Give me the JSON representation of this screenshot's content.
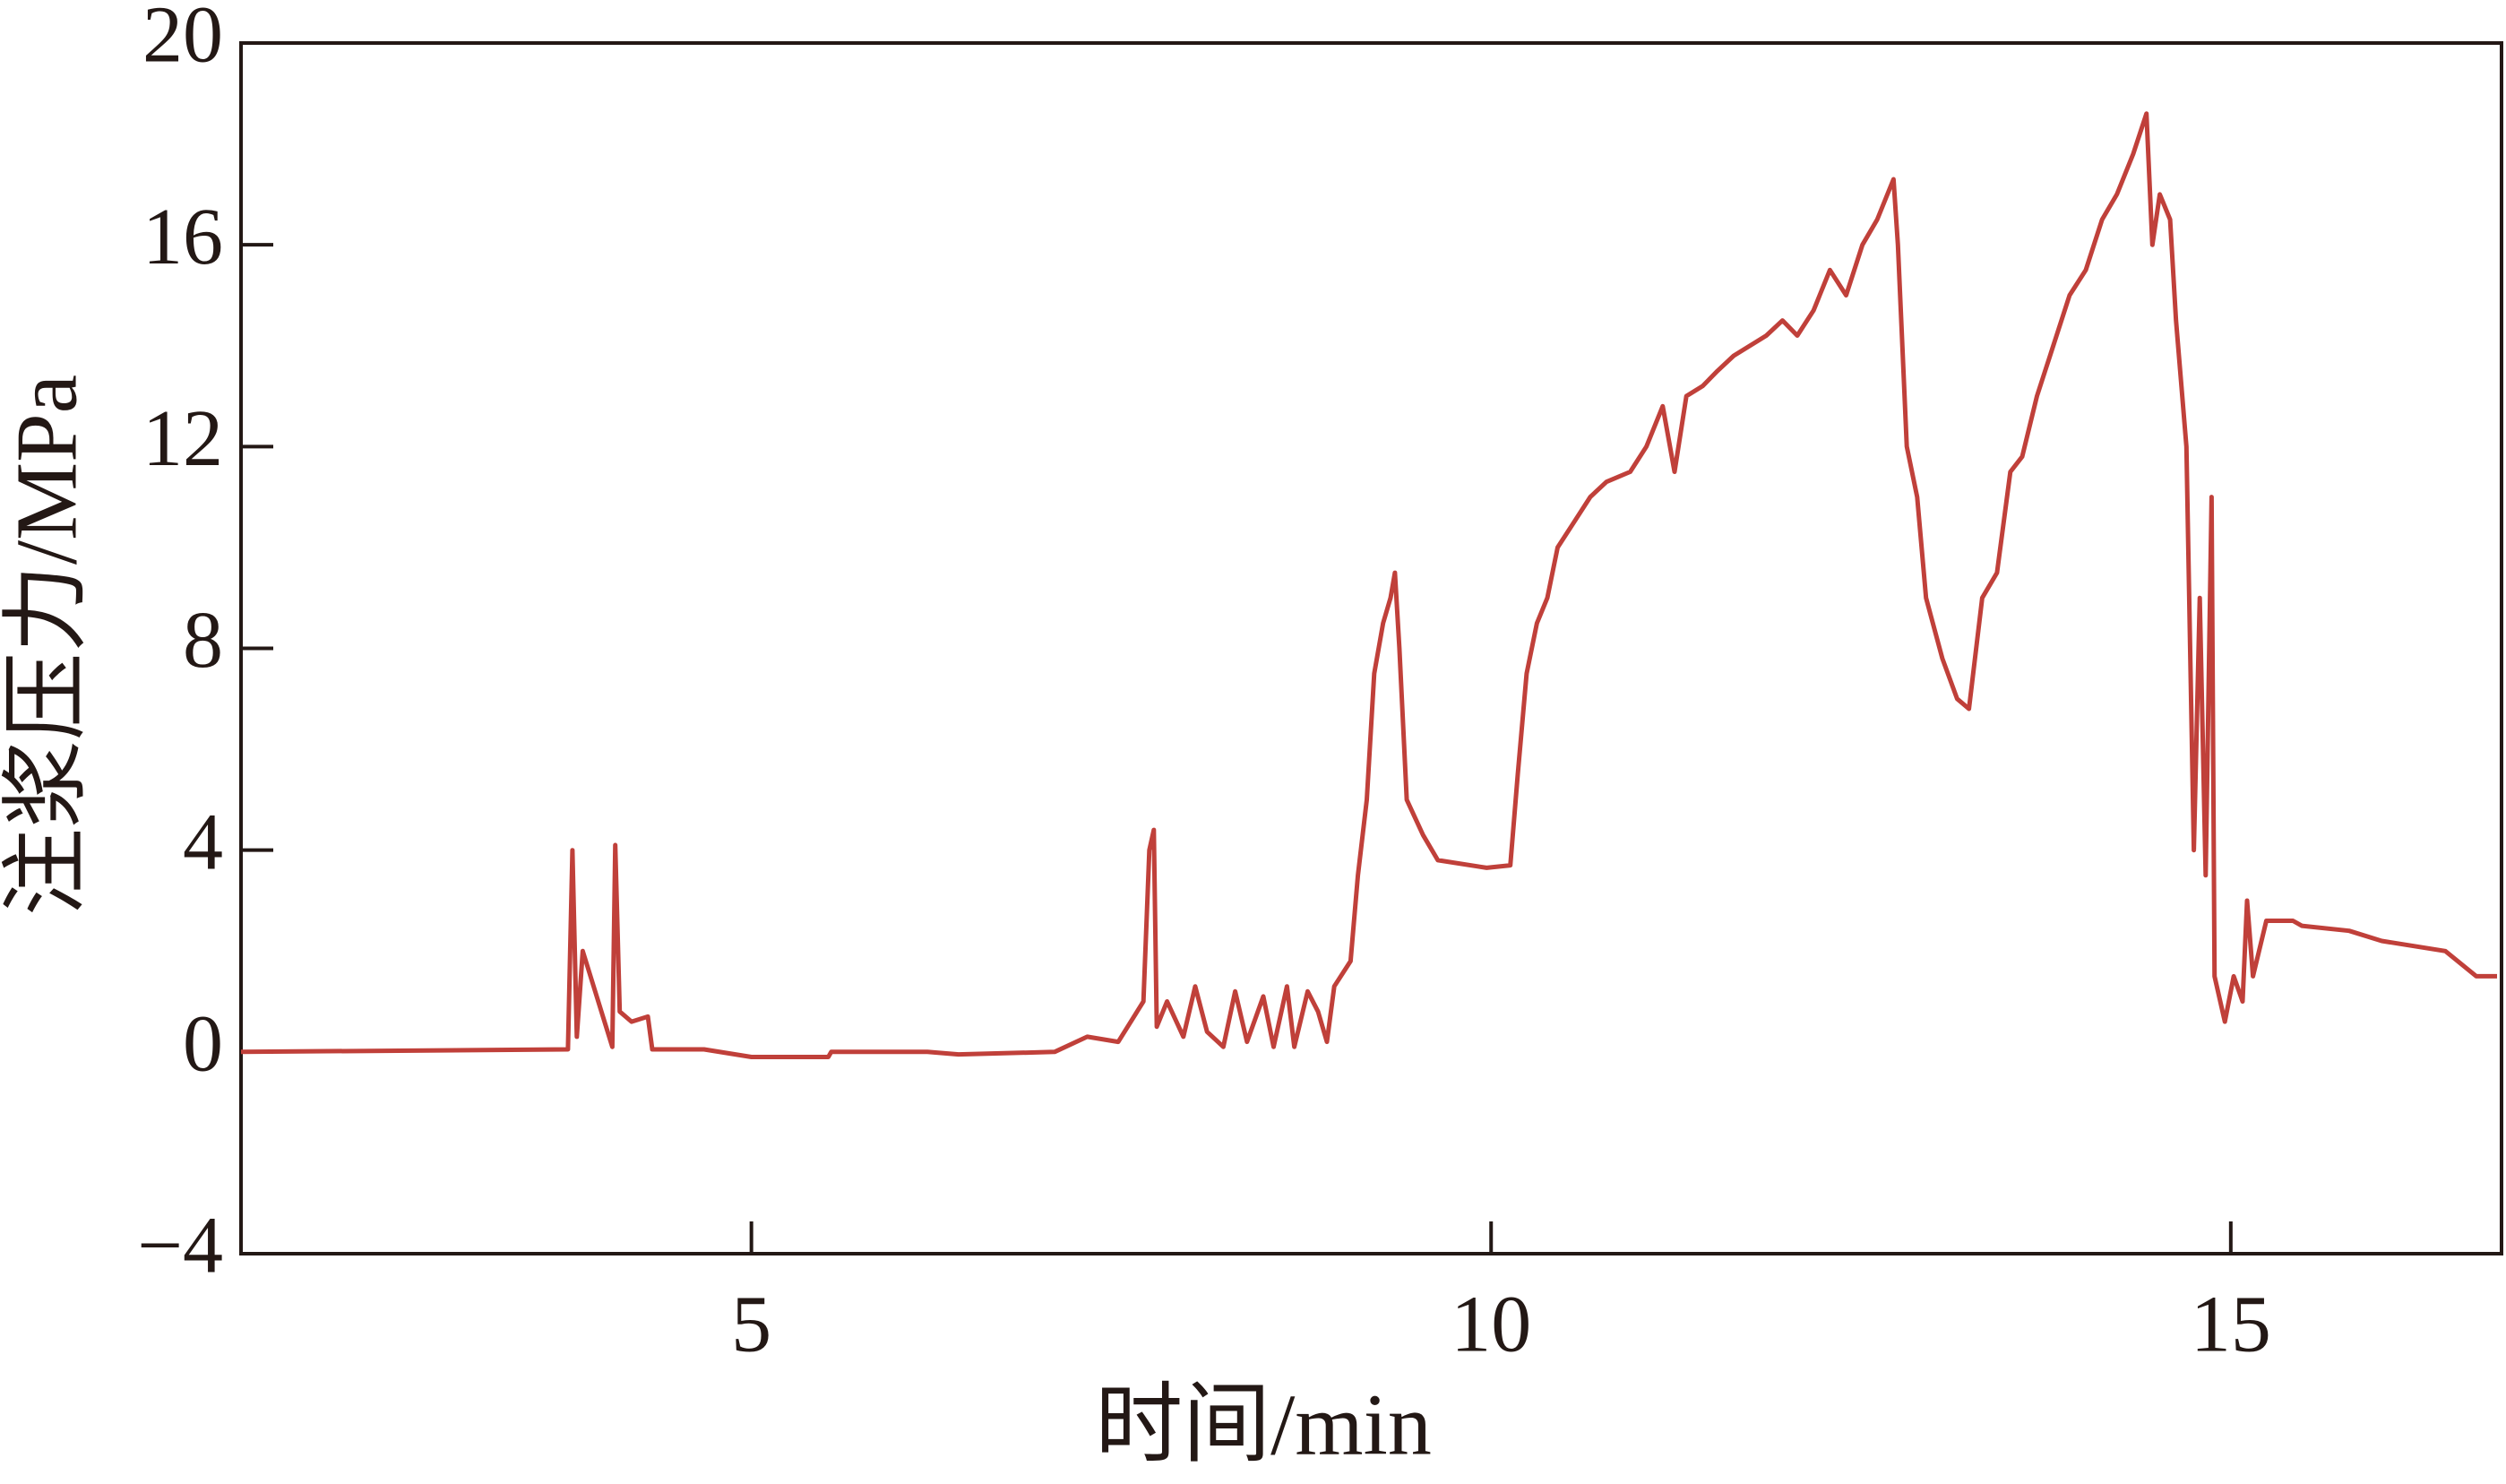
{
  "chart_data": {
    "type": "line",
    "xlabel": "时间/min",
    "ylabel": "注浆压力/MPa",
    "xlim": [
      1.55,
      16.83
    ],
    "ylim": [
      -4,
      20
    ],
    "xticks": [
      5,
      10,
      15
    ],
    "yticks": [
      {
        "value": -4,
        "label": "−4"
      },
      0,
      4,
      8,
      12,
      16,
      20
    ],
    "x": [
      1.55,
      3.76,
      3.79,
      3.82,
      3.86,
      4.06,
      4.08,
      4.11,
      4.19,
      4.3,
      4.33,
      4.68,
      5.0,
      5.52,
      5.54,
      6.19,
      6.4,
      7.05,
      7.27,
      7.48,
      7.65,
      7.69,
      7.72,
      7.74,
      7.81,
      7.92,
      8.0,
      8.08,
      8.19,
      8.27,
      8.35,
      8.46,
      8.53,
      8.62,
      8.67,
      8.76,
      8.83,
      8.89,
      8.94,
      9.05,
      9.1,
      9.16,
      9.21,
      9.27,
      9.32,
      9.35,
      9.38,
      9.43,
      9.54,
      9.64,
      9.97,
      10.13,
      10.18,
      10.24,
      10.31,
      10.38,
      10.45,
      10.56,
      10.67,
      10.78,
      10.94,
      11.05,
      11.16,
      11.24,
      11.32,
      11.43,
      11.53,
      11.64,
      11.75,
      11.86,
      11.97,
      12.07,
      12.18,
      12.29,
      12.4,
      12.51,
      12.61,
      12.72,
      12.75,
      12.81,
      12.88,
      12.94,
      13.05,
      13.15,
      13.23,
      13.32,
      13.42,
      13.51,
      13.59,
      13.69,
      13.8,
      13.91,
      14.02,
      14.13,
      14.23,
      14.34,
      14.43,
      14.47,
      14.52,
      14.59,
      14.63,
      14.7,
      14.75,
      14.79,
      14.83,
      14.87,
      14.89,
      14.96,
      15.02,
      15.08,
      15.11,
      15.15,
      15.24,
      15.42,
      15.48,
      15.8,
      16.02,
      16.45,
      16.66,
      16.8
    ],
    "series": [
      {
        "name": "注浆压力",
        "color": "#c0403a",
        "values": [
          0,
          0.05,
          4.0,
          0.3,
          2.0,
          0.1,
          4.1,
          0.8,
          0.6,
          0.7,
          0.05,
          0.05,
          -0.1,
          -0.1,
          0,
          0,
          -0.05,
          0,
          0.3,
          0.2,
          1.0,
          4.0,
          4.4,
          0.5,
          1.0,
          0.3,
          1.3,
          0.4,
          0.1,
          1.2,
          0.2,
          1.1,
          0.1,
          1.3,
          0.1,
          1.2,
          0.8,
          0.2,
          1.3,
          1.8,
          3.5,
          5.0,
          7.5,
          8.5,
          9.0,
          9.5,
          8.0,
          5.0,
          4.3,
          3.8,
          3.65,
          3.7,
          5.5,
          7.5,
          8.5,
          9.0,
          10.0,
          10.5,
          11.0,
          11.3,
          11.5,
          12.0,
          12.8,
          11.5,
          13.0,
          13.2,
          13.5,
          13.8,
          14.0,
          14.2,
          14.5,
          14.2,
          14.7,
          15.5,
          15.0,
          16.0,
          16.5,
          17.3,
          16.0,
          12.0,
          11.0,
          9.0,
          7.8,
          7.0,
          6.8,
          9.0,
          9.5,
          11.5,
          11.8,
          13.0,
          14.0,
          15.0,
          15.5,
          16.5,
          17.0,
          17.8,
          18.6,
          16.0,
          17.0,
          16.5,
          14.5,
          12.0,
          4.0,
          9.0,
          3.5,
          11.0,
          1.5,
          0.6,
          1.5,
          1.0,
          3.0,
          1.5,
          2.6,
          2.6,
          2.5,
          2.4,
          2.2,
          2.0,
          1.5,
          1.5
        ]
      }
    ]
  }
}
